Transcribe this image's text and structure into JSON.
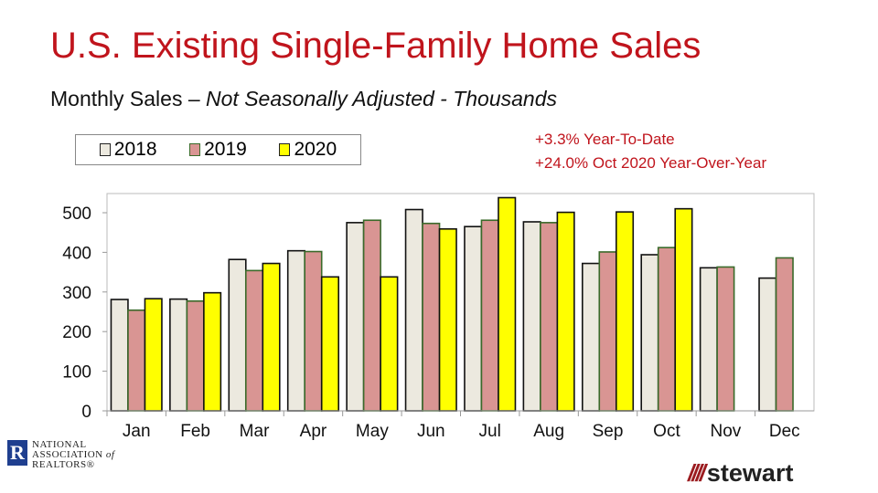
{
  "header": {
    "title": "U.S. Existing Single-Family Home Sales",
    "subtitle_plain": "Monthly Sales – ",
    "subtitle_italic": "Not Seasonally Adjusted - Thousands"
  },
  "notes": [
    "+3.3% Year-To-Date",
    "+24.0% Oct 2020 Year-Over-Year"
  ],
  "logos": {
    "left": "NATIONAL ASSOCIATION of REALTORS®",
    "right": "stewart"
  },
  "colors": {
    "title": "#c0141c",
    "2018": "#ece9df",
    "2019": "#d99593",
    "2020": "#ffff00"
  },
  "chart_data": {
    "type": "bar",
    "categories": [
      "Jan",
      "Feb",
      "Mar",
      "Apr",
      "May",
      "Jun",
      "Jul",
      "Aug",
      "Sep",
      "Oct",
      "Nov",
      "Dec"
    ],
    "series": [
      {
        "name": "2018",
        "values": [
          281,
          282,
          382,
          404,
          475,
          508,
          465,
          477,
          372,
          394,
          361,
          335
        ]
      },
      {
        "name": "2019",
        "values": [
          254,
          277,
          354,
          402,
          481,
          473,
          481,
          475,
          401,
          412,
          363,
          386
        ]
      },
      {
        "name": "2020",
        "values": [
          283,
          298,
          372,
          338,
          338,
          459,
          538,
          501,
          502,
          510,
          null,
          null
        ]
      }
    ],
    "ylim": [
      0,
      500
    ],
    "yticks": [
      "0",
      "100",
      "200",
      "300",
      "400",
      "500"
    ],
    "legend": "top-left",
    "grid": false
  }
}
